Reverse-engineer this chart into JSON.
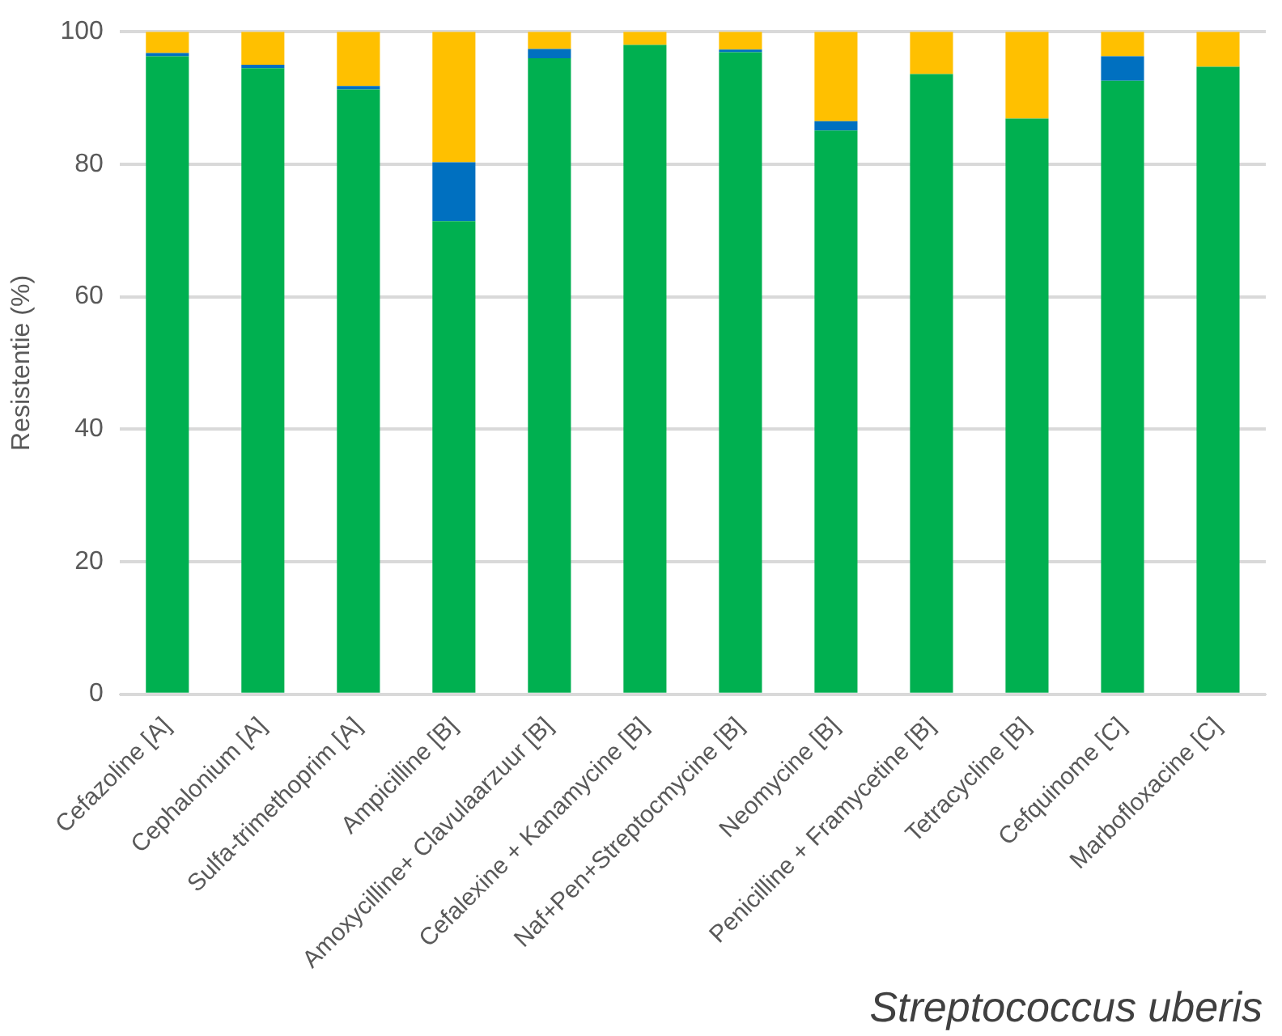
{
  "chart_data": {
    "type": "bar",
    "stacked": true,
    "ylabel": "Resistentie (%)",
    "xlabel": "Streptococcus uberis",
    "categories": [
      "Cefazoline [A]",
      "Cephalonium [A]",
      "Sulfa-trimethoprim [A]",
      "Ampicilline [B]",
      "Amoxycilline+ Clavulaarzuur [B]",
      "Cefalexine + Kanamycine [B]",
      "Naf+Pen+Streptocmycine [B]",
      "Neomycine [B]",
      "Penicilline + Framycetine [B]",
      "Tetracycline [B]",
      "Cefquinome [C]",
      "Marbofloxacine [C]"
    ],
    "series": [
      {
        "color": "#00b050",
        "values": [
          96.3,
          94.5,
          91.3,
          71.4,
          96,
          98,
          96.9,
          85.1,
          93.6,
          86.9,
          92.6,
          94.7
        ]
      },
      {
        "color": "#0070c0",
        "values": [
          0.5,
          0.5,
          0.5,
          8.9,
          1.4,
          0,
          0.4,
          1.4,
          0,
          0,
          3.7,
          0
        ]
      },
      {
        "color": "#ffc000",
        "values": [
          3.2,
          5,
          8.2,
          19.7,
          2.6,
          2,
          2.7,
          13.5,
          6.4,
          13.1,
          3.7,
          5.3
        ]
      }
    ],
    "ylim": [
      0,
      100
    ],
    "yticks": [
      0,
      20,
      40,
      60,
      80,
      100
    ],
    "grid": "y",
    "legend": false
  }
}
